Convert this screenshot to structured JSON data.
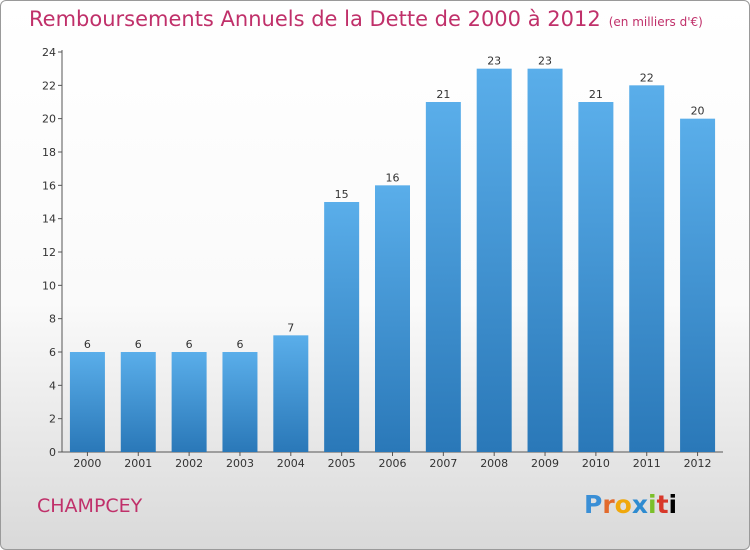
{
  "chart_data": {
    "type": "bar",
    "title": "Remboursements Annuels de la Dette de 2000 à 2012",
    "subtitle": "(en milliers d'€)",
    "categories": [
      "2000",
      "2001",
      "2002",
      "2003",
      "2004",
      "2005",
      "2006",
      "2007",
      "2008",
      "2009",
      "2010",
      "2011",
      "2012"
    ],
    "values": [
      6,
      6,
      6,
      6,
      7,
      15,
      16,
      21,
      23,
      23,
      21,
      22,
      20
    ],
    "ylim": [
      0,
      24
    ],
    "yticks": [
      0,
      2,
      4,
      6,
      8,
      10,
      12,
      14,
      16,
      18,
      20,
      22,
      24
    ],
    "grid": false,
    "bar_color_top": "#5aaeea",
    "bar_color_bottom": "#2a78b8"
  },
  "commune": "CHAMPCEY",
  "logo": {
    "letters": [
      "P",
      "r",
      "o",
      "x",
      "i",
      "t",
      "i"
    ]
  }
}
